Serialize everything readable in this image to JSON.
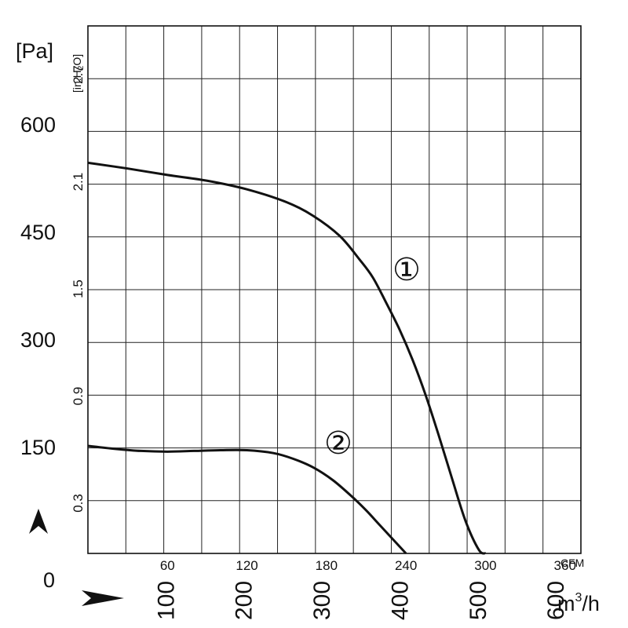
{
  "chart_data": {
    "type": "line",
    "y_unit_left": "[Pa]",
    "y_unit_inner": "[in.H2O]",
    "y_unit_inner_sub": "2",
    "x_unit_top": "CFM",
    "x_unit_bottom": "m3/h",
    "x_unit_bottom_sup": "3",
    "y_ticks_pa": [
      "0",
      "150",
      "300",
      "450",
      "600"
    ],
    "y_ticks_inh2o": [
      "0.3",
      "0.9",
      "1.5",
      "2.1",
      "2.7"
    ],
    "x_ticks_cfm": [
      "60",
      "120",
      "180",
      "240",
      "300",
      "360"
    ],
    "x_ticks_m3h": [
      "100",
      "200",
      "300",
      "400",
      "500",
      "600"
    ],
    "xlim_cfm": [
      0,
      372
    ],
    "ylim_pa": [
      0,
      736
    ],
    "series": [
      {
        "name": "1",
        "x": [
          0,
          30,
          60,
          90,
          120,
          150,
          170,
          190,
          205,
          215,
          225,
          235,
          245,
          255,
          265,
          275,
          285,
          295,
          300
        ],
        "y": [
          545,
          537,
          528,
          520,
          508,
          490,
          471,
          443,
          410,
          385,
          350,
          313,
          270,
          220,
          163,
          103,
          45,
          5,
          0
        ]
      },
      {
        "name": "2",
        "x": [
          0,
          20,
          40,
          60,
          80,
          100,
          120,
          140,
          155,
          170,
          185,
          200,
          210,
          220,
          230,
          240
        ],
        "y": [
          150,
          146,
          143,
          142,
          143,
          144,
          144,
          140,
          132,
          120,
          102,
          78,
          60,
          40,
          20,
          0
        ]
      }
    ],
    "grid": true
  },
  "labels": {
    "curve1": "①",
    "curve2": "②"
  },
  "icons": {
    "up": "arrow-up-icon",
    "right": "arrow-right-icon"
  }
}
